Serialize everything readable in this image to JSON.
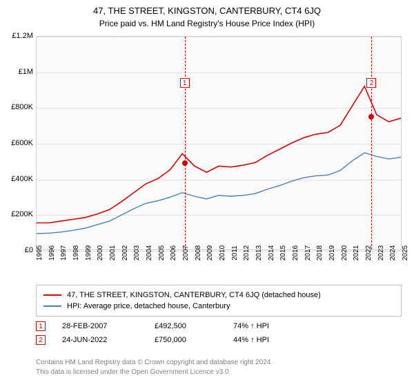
{
  "title": "47, THE STREET, KINGSTON, CANTERBURY, CT4 6JQ",
  "subtitle": "Price paid vs. HM Land Registry's House Price Index (HPI)",
  "chart": {
    "type": "line",
    "plot_bg": "#fbfbfb",
    "grid_color": "#e0e0e0",
    "border_color": "#d0d0d0",
    "y": {
      "min": 0,
      "max": 1200000,
      "step": 200000,
      "labels": [
        "£0",
        "£200K",
        "£400K",
        "£600K",
        "£800K",
        "£1M",
        "£1.2M"
      ]
    },
    "x": {
      "years": [
        1995,
        1996,
        1997,
        1998,
        1999,
        2000,
        2001,
        2002,
        2003,
        2004,
        2005,
        2006,
        2007,
        2008,
        2009,
        2010,
        2011,
        2012,
        2013,
        2014,
        2015,
        2016,
        2017,
        2018,
        2019,
        2020,
        2021,
        2022,
        2023,
        2024,
        2025
      ]
    },
    "series1": {
      "label": "47, THE STREET, KINGSTON, CANTERBURY, CT4 6JQ (detached house)",
      "color": "#d40000",
      "width": 1.6,
      "values": [
        150000,
        150000,
        160000,
        170000,
        180000,
        200000,
        225000,
        270000,
        320000,
        370000,
        400000,
        450000,
        540000,
        470000,
        435000,
        470000,
        465000,
        475000,
        490000,
        530000,
        565000,
        600000,
        630000,
        650000,
        660000,
        700000,
        810000,
        920000,
        760000,
        720000,
        740000
      ]
    },
    "series2": {
      "label": "HPI: Average price, detached house, Canterbury",
      "color": "#4a7fb8",
      "width": 1.4,
      "values": [
        90000,
        92000,
        98000,
        108000,
        120000,
        140000,
        160000,
        195000,
        230000,
        260000,
        275000,
        295000,
        320000,
        300000,
        285000,
        305000,
        300000,
        305000,
        315000,
        340000,
        360000,
        385000,
        405000,
        415000,
        420000,
        445000,
        500000,
        545000,
        525000,
        510000,
        520000
      ]
    },
    "events": [
      {
        "num": "1",
        "year": 2007.15,
        "value": 492500,
        "color": "#d40000"
      },
      {
        "num": "2",
        "year": 2022.48,
        "value": 750000,
        "color": "#d40000"
      }
    ]
  },
  "legend": [
    {
      "color": "#d40000",
      "label": "47, THE STREET, KINGSTON, CANTERBURY, CT4 6JQ (detached house)"
    },
    {
      "color": "#4a7fb8",
      "label": "HPI: Average price, detached house, Canterbury"
    }
  ],
  "transactions": [
    {
      "num": "1",
      "color": "#d40000",
      "date": "28-FEB-2007",
      "price": "£492,500",
      "pct": "74%",
      "direction": "↑",
      "vs": "HPI"
    },
    {
      "num": "2",
      "color": "#d40000",
      "date": "24-JUN-2022",
      "price": "£750,000",
      "pct": "44%",
      "direction": "↑",
      "vs": "HPI"
    }
  ],
  "footer": {
    "line1": "Contains HM Land Registry data © Crown copyright and database right 2024.",
    "line2": "This data is licensed under the Open Government Licence v3.0."
  }
}
